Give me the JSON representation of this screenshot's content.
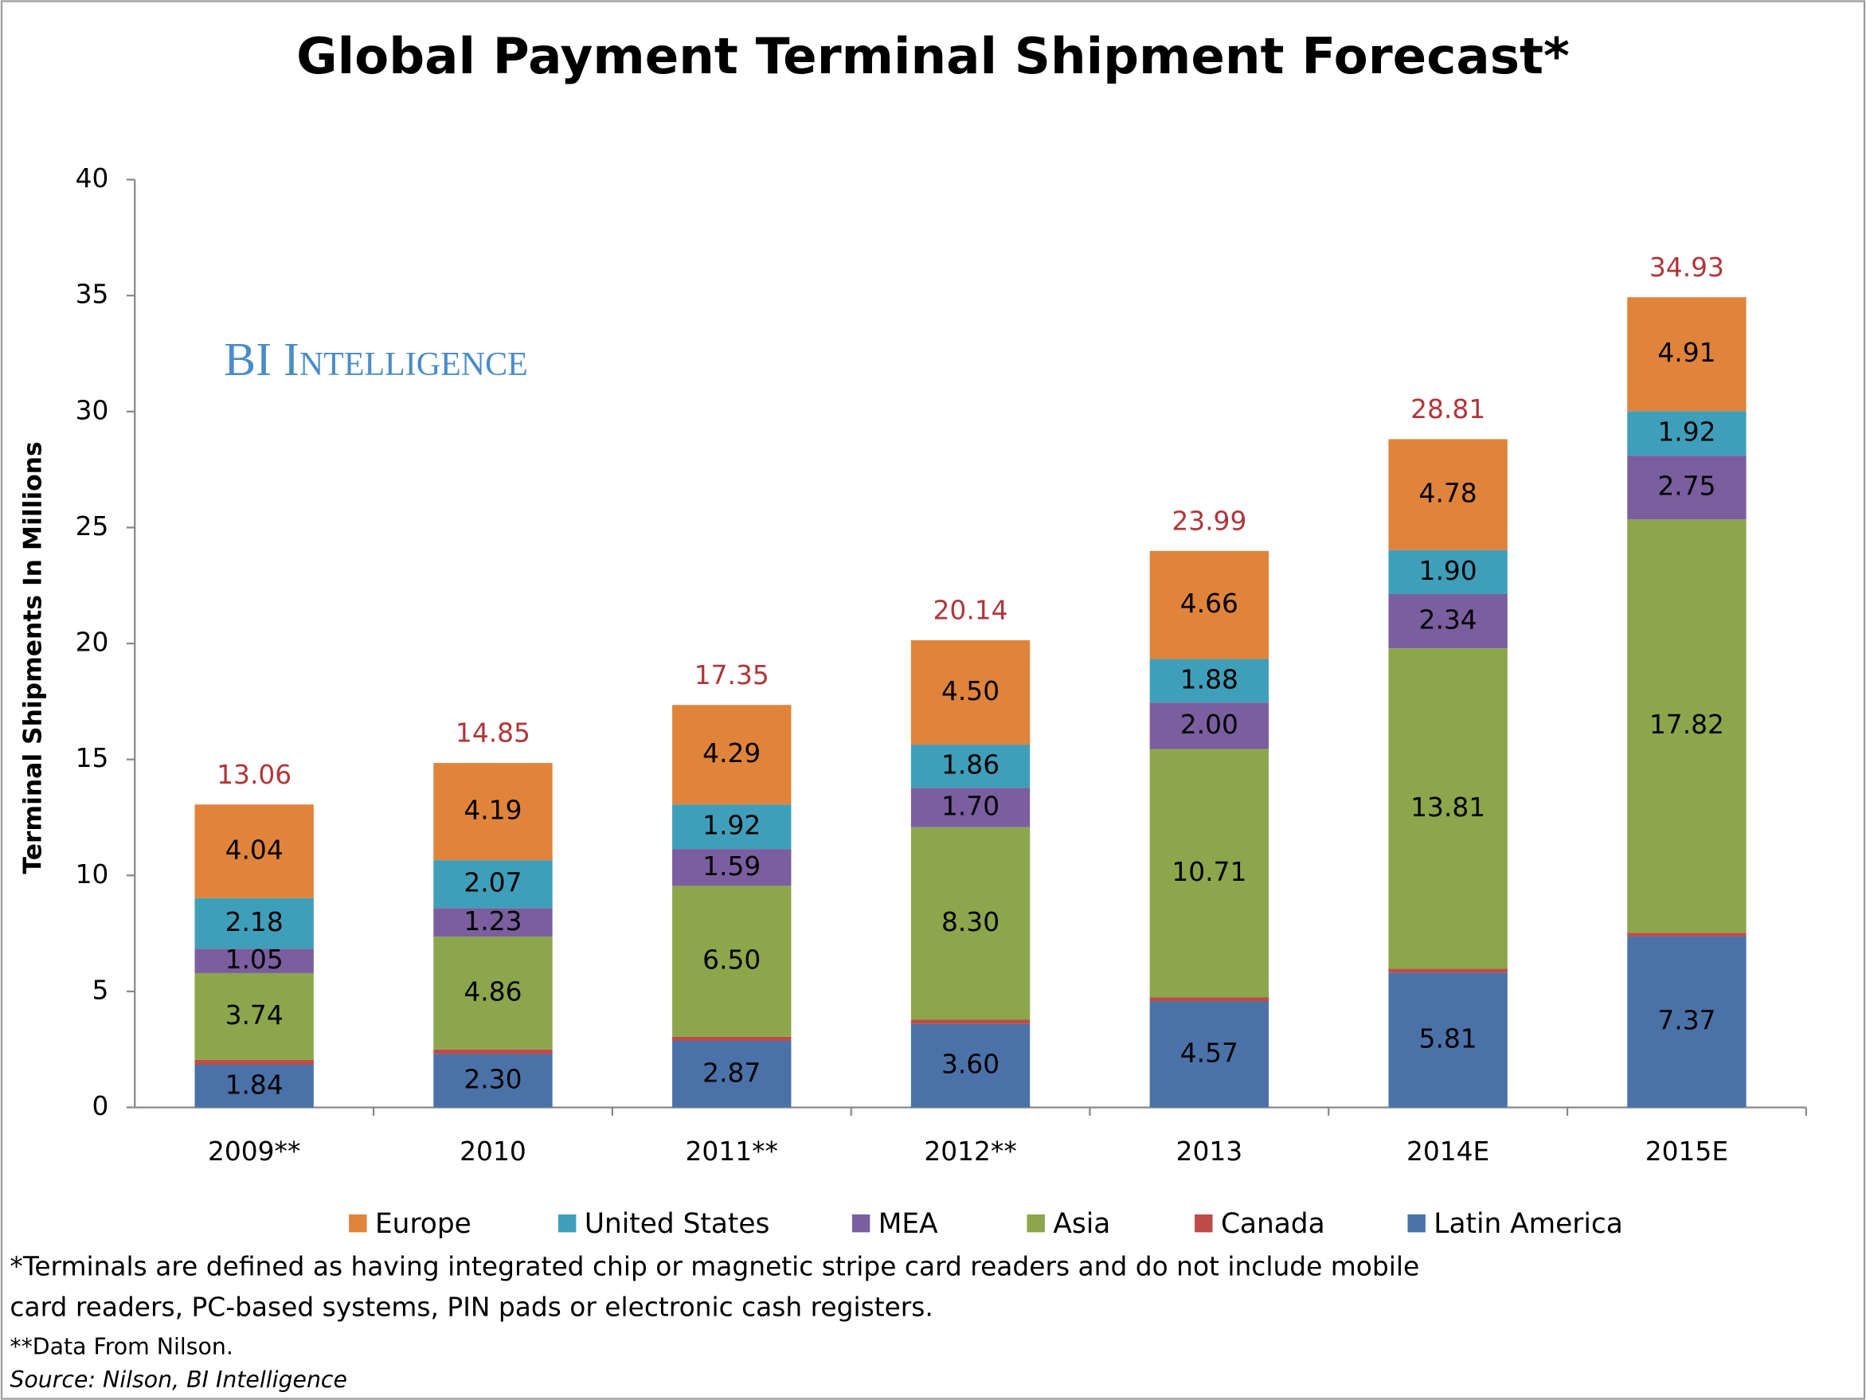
{
  "chart_data": {
    "type": "stacked_bar",
    "title": "Global Payment Terminal Shipment Forecast*",
    "watermark": "BI Intelligence",
    "y_label": "Terminal Shipments In Millions",
    "categories": [
      "2009**",
      "2010",
      "2011**",
      "2012**",
      "2013",
      "2014E",
      "2015E"
    ],
    "series": [
      {
        "name": "Latin America",
        "color": "#4a72a8",
        "values": [
          1.84,
          2.3,
          2.87,
          3.6,
          4.57,
          5.81,
          7.37
        ],
        "value_labels": [
          "1.84",
          "2.30",
          "2.87",
          "3.60",
          "4.57",
          "5.81",
          "7.37"
        ]
      },
      {
        "name": "Canada",
        "color": "#be4b48",
        "values": [
          0.21,
          0.2,
          0.18,
          0.18,
          0.17,
          0.17,
          0.16
        ]
      },
      {
        "name": "Asia",
        "color": "#8ca64c",
        "values": [
          3.74,
          4.86,
          6.5,
          8.3,
          10.71,
          13.81,
          17.82
        ],
        "value_labels": [
          "3.74",
          "4.86",
          "6.50",
          "8.30",
          "10.71",
          "13.81",
          "17.82"
        ]
      },
      {
        "name": "MEA",
        "color": "#7b5e9f",
        "values": [
          1.05,
          1.23,
          1.59,
          1.7,
          2.0,
          2.34,
          2.75
        ],
        "value_labels": [
          "1.05",
          "1.23",
          "1.59",
          "1.70",
          "2.00",
          "2.34",
          "2.75"
        ]
      },
      {
        "name": "United States",
        "color": "#3f9fba",
        "values": [
          2.18,
          2.07,
          1.92,
          1.86,
          1.88,
          1.9,
          1.92
        ],
        "value_labels": [
          "2.18",
          "2.07",
          "1.92",
          "1.86",
          "1.88",
          "1.90",
          "1.92"
        ]
      },
      {
        "name": "Europe",
        "color": "#e0843b",
        "values": [
          4.04,
          4.19,
          4.29,
          4.5,
          4.66,
          4.78,
          4.91
        ],
        "value_labels": [
          "4.04",
          "4.19",
          "4.29",
          "4.50",
          "4.66",
          "4.78",
          "4.91"
        ]
      }
    ],
    "totals": [
      13.06,
      14.85,
      17.35,
      20.14,
      23.99,
      28.81,
      34.93
    ],
    "total_color": "#b0363a",
    "ylim": [
      0,
      40
    ],
    "yticks": [
      0,
      5,
      10,
      15,
      20,
      25,
      30,
      35,
      40
    ],
    "grid": false,
    "legend_order": [
      5,
      4,
      3,
      2,
      1,
      0
    ],
    "notes": [
      "*Terminals are defined as having integrated chip or magnetic stripe card readers and do not include mobile",
      "card readers, PC-based systems, PIN pads or electronic cash registers.",
      "**Data From Nilson."
    ],
    "source": "Source: Nilson, BI Intelligence"
  }
}
